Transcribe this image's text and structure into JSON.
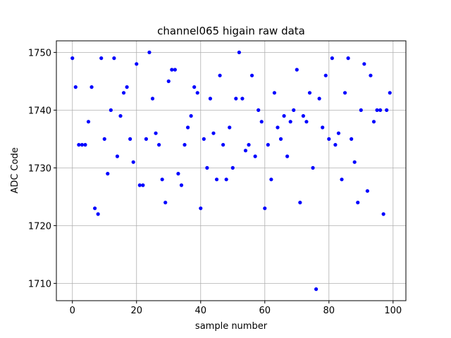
{
  "chart_data": {
    "type": "scatter",
    "title": "channel065 higain raw data",
    "xlabel": "sample number",
    "ylabel": "ADC Code",
    "xlim": [
      -5,
      104
    ],
    "ylim": [
      1707,
      1752
    ],
    "xticks": [
      0,
      20,
      40,
      60,
      80,
      100
    ],
    "yticks": [
      1710,
      1720,
      1730,
      1740,
      1750
    ],
    "grid": true,
    "marker_color": "#0000ff",
    "series": [
      {
        "x": [
          0,
          1,
          2,
          3,
          4,
          5,
          6,
          7,
          8,
          9,
          10,
          11,
          12,
          13,
          14,
          15,
          16,
          17,
          18,
          19,
          20,
          21,
          22,
          23,
          24,
          25,
          26,
          27,
          28,
          29,
          30,
          31,
          32,
          33,
          34,
          35,
          36,
          37,
          38,
          39,
          40,
          41,
          42,
          43,
          44,
          45,
          46,
          47,
          48,
          49,
          50,
          51,
          52,
          53,
          54,
          55,
          56,
          57,
          58,
          59,
          60,
          61,
          62,
          63,
          64,
          65,
          66,
          67,
          68,
          69,
          70,
          71,
          72,
          73,
          74,
          75,
          76,
          77,
          78,
          79,
          80,
          81,
          82,
          83,
          84,
          85,
          86,
          87,
          88,
          89,
          90,
          91,
          92,
          93,
          94,
          95,
          96,
          97,
          98,
          99
        ],
        "y": [
          1749,
          1744,
          1734,
          1734,
          1734,
          1738,
          1744,
          1723,
          1722,
          1749,
          1735,
          1729,
          1740,
          1749,
          1732,
          1739,
          1743,
          1744,
          1735,
          1731,
          1748,
          1727,
          1727,
          1735,
          1750,
          1742,
          1736,
          1734,
          1728,
          1724,
          1745,
          1747,
          1747,
          1729,
          1727,
          1734,
          1737,
          1739,
          1744,
          1743,
          1723,
          1735,
          1730,
          1742,
          1736,
          1728,
          1746,
          1734,
          1728,
          1737,
          1730,
          1742,
          1750,
          1742,
          1733,
          1734,
          1746,
          1732,
          1740,
          1738,
          1723,
          1734,
          1728,
          1743,
          1737,
          1735,
          1739,
          1732,
          1738,
          1740,
          1747,
          1724,
          1739,
          1738,
          1743,
          1730,
          1709,
          1742,
          1737,
          1746,
          1735,
          1749,
          1734,
          1736,
          1728,
          1743,
          1749,
          1735,
          1731,
          1724,
          1740,
          1748,
          1726,
          1746,
          1738,
          1740,
          1740,
          1722,
          1740,
          1743
        ]
      }
    ]
  }
}
